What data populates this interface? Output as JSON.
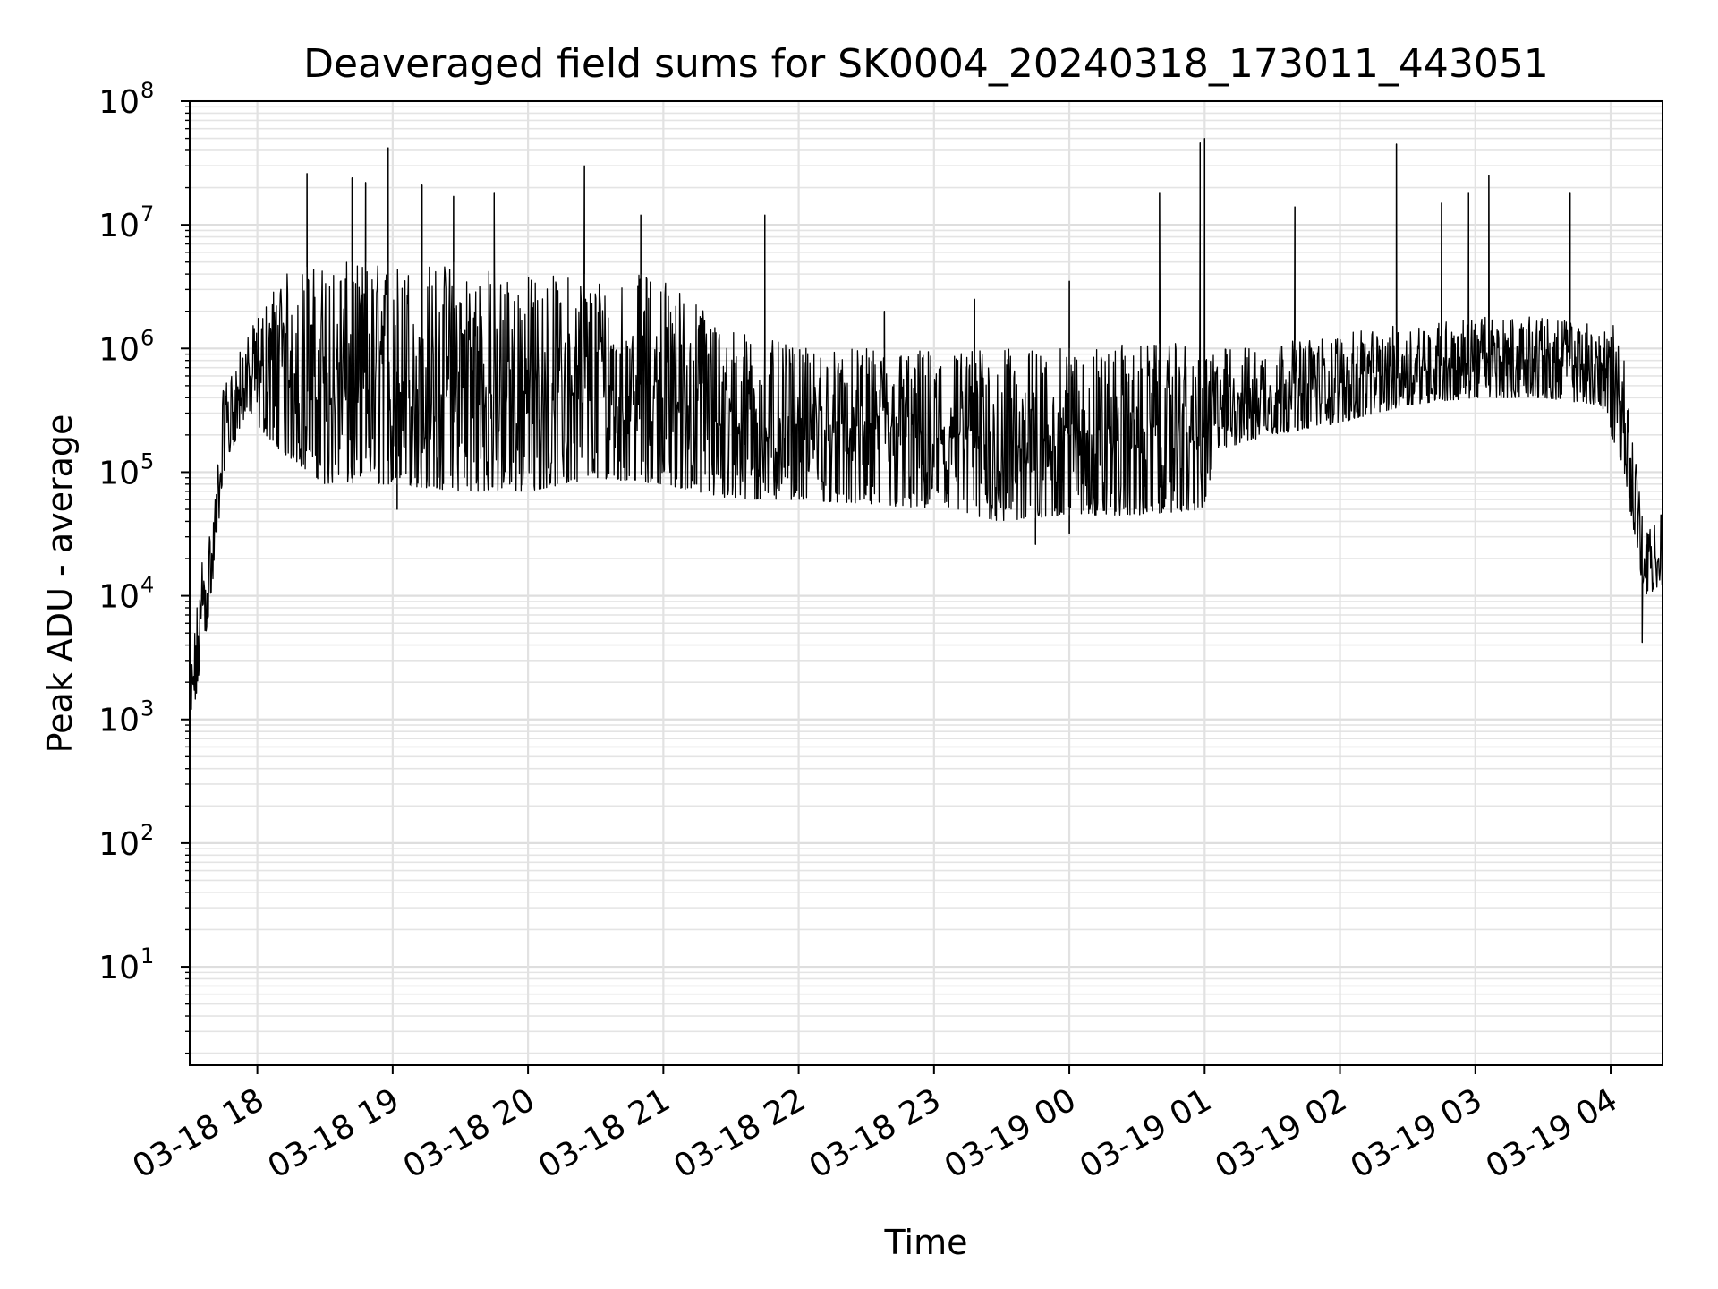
{
  "chart_data": {
    "type": "line",
    "title": "Deaveraged field sums for SK0004_20240318_173011_443051",
    "xlabel": "Time",
    "ylabel": "Peak ADU - average",
    "yscale": "log",
    "ylim": [
      1.6,
      100000000
    ],
    "xlim": [
      "2024-03-18 17:30",
      "2024-03-19 04:23"
    ],
    "grid": true,
    "x_ticks": [
      {
        "value": "2024-03-18 18:00",
        "label": "03-18 18"
      },
      {
        "value": "2024-03-18 19:00",
        "label": "03-18 19"
      },
      {
        "value": "2024-03-18 20:00",
        "label": "03-18 20"
      },
      {
        "value": "2024-03-18 21:00",
        "label": "03-18 21"
      },
      {
        "value": "2024-03-18 22:00",
        "label": "03-18 22"
      },
      {
        "value": "2024-03-18 23:00",
        "label": "03-18 23"
      },
      {
        "value": "2024-03-19 00:00",
        "label": "03-19 00"
      },
      {
        "value": "2024-03-19 01:00",
        "label": "03-19 01"
      },
      {
        "value": "2024-03-19 02:00",
        "label": "03-19 02"
      },
      {
        "value": "2024-03-19 03:00",
        "label": "03-19 03"
      },
      {
        "value": "2024-03-19 04:00",
        "label": "03-19 04"
      }
    ],
    "y_ticks": [
      {
        "value": 10,
        "base": "10",
        "exp": "1"
      },
      {
        "value": 100,
        "base": "10",
        "exp": "2"
      },
      {
        "value": 1000,
        "base": "10",
        "exp": "3"
      },
      {
        "value": 10000,
        "base": "10",
        "exp": "4"
      },
      {
        "value": 100000,
        "base": "10",
        "exp": "5"
      },
      {
        "value": 1000000,
        "base": "10",
        "exp": "6"
      },
      {
        "value": 10000000,
        "base": "10",
        "exp": "7"
      },
      {
        "value": 100000000,
        "base": "10",
        "exp": "8"
      }
    ],
    "series": [
      {
        "color": "#000000",
        "envelope": {
          "x": [
            "2024-03-18 17:30",
            "2024-03-18 17:35",
            "2024-03-18 17:40",
            "2024-03-18 17:45",
            "2024-03-18 17:55",
            "2024-03-18 18:10",
            "2024-03-18 18:30",
            "2024-03-18 19:00",
            "2024-03-18 19:30",
            "2024-03-18 20:00",
            "2024-03-18 20:30",
            "2024-03-18 21:00",
            "2024-03-18 21:30",
            "2024-03-18 22:00",
            "2024-03-18 22:30",
            "2024-03-18 23:00",
            "2024-03-18 23:30",
            "2024-03-19 00:00",
            "2024-03-19 00:30",
            "2024-03-19 01:00",
            "2024-03-19 01:05",
            "2024-03-19 01:30",
            "2024-03-19 02:00",
            "2024-03-19 02:30",
            "2024-03-19 03:00",
            "2024-03-19 03:30",
            "2024-03-19 03:55",
            "2024-03-19 04:05",
            "2024-03-19 04:15",
            "2024-03-19 04:23"
          ],
          "low": [
            500,
            3000,
            10000,
            100000,
            300000,
            150000,
            80000,
            80000,
            70000,
            70000,
            90000,
            80000,
            60000,
            60000,
            55000,
            50000,
            40000,
            45000,
            45000,
            50000,
            150000,
            200000,
            250000,
            350000,
            400000,
            400000,
            350000,
            120000,
            10000,
            12000
          ],
          "high": [
            2000,
            20000,
            40000,
            500000,
            1200000,
            4000000,
            5000000,
            5000000,
            5000000,
            4000000,
            4000000,
            4000000,
            1500000,
            1000000,
            1000000,
            1000000,
            1000000,
            1000000,
            1100000,
            1100000,
            1000000,
            1100000,
            1300000,
            1600000,
            1800000,
            1800000,
            1600000,
            1500000,
            30000,
            50000
          ]
        },
        "spikes": [
          {
            "x": "2024-03-18 18:22",
            "y": 26000000
          },
          {
            "x": "2024-03-18 18:42",
            "y": 24000000
          },
          {
            "x": "2024-03-18 18:48",
            "y": 22000000
          },
          {
            "x": "2024-03-18 18:58",
            "y": 42000000
          },
          {
            "x": "2024-03-18 19:13",
            "y": 21000000
          },
          {
            "x": "2024-03-18 19:27",
            "y": 17000000
          },
          {
            "x": "2024-03-18 19:45",
            "y": 18000000
          },
          {
            "x": "2024-03-18 20:25",
            "y": 30000000
          },
          {
            "x": "2024-03-18 20:50",
            "y": 12000000
          },
          {
            "x": "2024-03-18 21:45",
            "y": 12000000
          },
          {
            "x": "2024-03-18 22:38",
            "y": 2000000
          },
          {
            "x": "2024-03-18 23:18",
            "y": 2500000
          },
          {
            "x": "2024-03-19 00:00",
            "y": 3500000
          },
          {
            "x": "2024-03-19 00:40",
            "y": 18000000
          },
          {
            "x": "2024-03-19 00:58",
            "y": 46000000
          },
          {
            "x": "2024-03-19 01:00",
            "y": 50000000
          },
          {
            "x": "2024-03-19 01:40",
            "y": 14000000
          },
          {
            "x": "2024-03-19 02:25",
            "y": 45000000
          },
          {
            "x": "2024-03-19 02:45",
            "y": 15000000
          },
          {
            "x": "2024-03-19 02:57",
            "y": 18000000
          },
          {
            "x": "2024-03-19 03:06",
            "y": 25000000
          },
          {
            "x": "2024-03-19 03:42",
            "y": 18000000
          }
        ],
        "dips": [
          {
            "x": "2024-03-18 19:02",
            "y": 50000
          },
          {
            "x": "2024-03-18 23:45",
            "y": 26000
          },
          {
            "x": "2024-03-19 00:00",
            "y": 32000
          },
          {
            "x": "2024-03-19 04:14",
            "y": 4200
          }
        ]
      }
    ]
  }
}
